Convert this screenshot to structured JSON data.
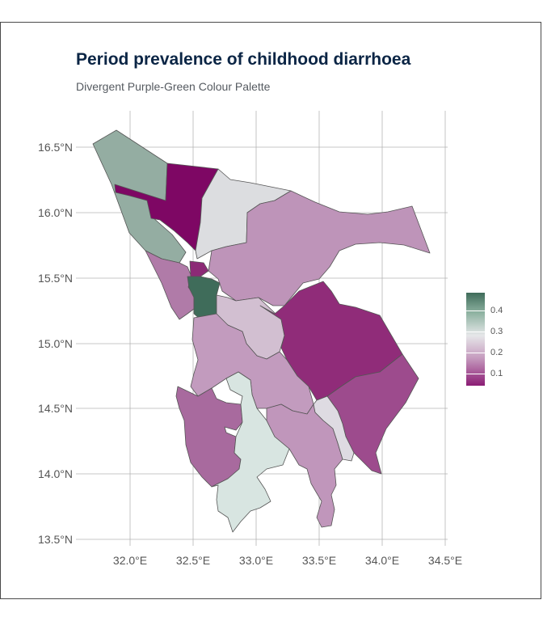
{
  "title": "Period prevalence of childhood diarrhoea",
  "subtitle": "Divergent Purple-Green Colour Palette",
  "axes": {
    "lat_labels": [
      "16.5°N",
      "16.0°N",
      "15.5°N",
      "15.0°N",
      "14.5°N",
      "14.0°N",
      "13.5°N"
    ],
    "lon_labels": [
      "32.0°E",
      "32.5°E",
      "33.0°E",
      "33.5°E",
      "34.0°E",
      "34.5°E"
    ]
  },
  "legend": {
    "ticks": [
      "0.4",
      "0.3",
      "0.2",
      "0.1"
    ],
    "colors": [
      "#3f6c5a",
      "#8fb3a2",
      "#e6e7e9",
      "#c69cbf",
      "#8b1c74"
    ]
  },
  "chart_data": {
    "type": "choropleth",
    "title": "Period prevalence of childhood diarrhoea",
    "subtitle": "Divergent Purple-Green Colour Palette",
    "xlim": [
      31.6,
      34.5
    ],
    "ylim": [
      13.45,
      16.75
    ],
    "x_ticks": [
      32.0,
      32.5,
      33.0,
      33.5,
      34.0,
      34.5
    ],
    "y_ticks": [
      13.5,
      14.0,
      14.5,
      15.0,
      15.5,
      16.0,
      16.5
    ],
    "grid": true,
    "legend_position": "right",
    "scale_range": [
      0.05,
      0.47
    ],
    "regions": [
      {
        "value": 0.33,
        "color": "#94ada2"
      },
      {
        "value": 0.03,
        "color": "#7e0764"
      },
      {
        "value": 0.21,
        "color": "#dcdde0"
      },
      {
        "value": 0.15,
        "color": "#be94b9"
      },
      {
        "value": 0.13,
        "color": "#b07ba8"
      },
      {
        "value": 0.06,
        "color": "#8c2a76"
      },
      {
        "value": 0.46,
        "color": "#3f6c5a"
      },
      {
        "value": 0.18,
        "color": "#d2bfd1"
      },
      {
        "value": 0.07,
        "color": "#902c79"
      },
      {
        "value": 0.16,
        "color": "#c29bbe"
      },
      {
        "value": 0.1,
        "color": "#9d4b8d"
      },
      {
        "value": 0.12,
        "color": "#a86a9e"
      },
      {
        "value": 0.27,
        "color": "#d8e5e1"
      },
      {
        "value": 0.15,
        "color": "#c096bb"
      },
      {
        "value": 0.2,
        "color": "#dedbe2"
      }
    ]
  }
}
